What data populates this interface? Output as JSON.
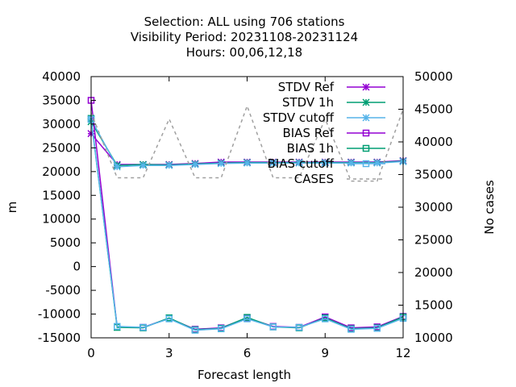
{
  "chart_data": {
    "type": "line",
    "title_lines": [
      "Selection: ALL using   706 stations",
      "Visibility   Period: 20231108-20231124",
      "Hours:  00,06,12,18"
    ],
    "xlabel": "Forecast length",
    "ylabel": "m",
    "y2label": "No cases",
    "xlim": [
      0,
      12
    ],
    "xticks": [
      0,
      3,
      6,
      9,
      12
    ],
    "ylim": [
      -15000,
      40000
    ],
    "yticks": [
      -15000,
      -10000,
      -5000,
      0,
      5000,
      10000,
      15000,
      20000,
      25000,
      30000,
      35000,
      40000
    ],
    "y2lim": [
      10000,
      50000
    ],
    "y2ticks": [
      10000,
      15000,
      20000,
      25000,
      30000,
      35000,
      40000,
      45000,
      50000
    ],
    "grid": false,
    "legend_position": "top-right",
    "x": [
      0,
      1,
      2,
      3,
      4,
      5,
      6,
      7,
      8,
      9,
      10,
      11,
      12
    ],
    "series": [
      {
        "name": "STDV Ref",
        "axis": "left",
        "color": "#9400d3",
        "marker": "x",
        "dash": "",
        "values": [
          28000,
          21500,
          21500,
          21500,
          21700,
          22000,
          22000,
          22000,
          22000,
          22000,
          22000,
          22000,
          22300
        ]
      },
      {
        "name": "STDV 1h",
        "axis": "left",
        "color": "#009e73",
        "marker": "x",
        "dash": "",
        "values": [
          30500,
          21300,
          21500,
          21400,
          21600,
          21800,
          21900,
          21900,
          21900,
          21900,
          21900,
          21900,
          22200
        ]
      },
      {
        "name": "STDV cutoff",
        "axis": "left",
        "color": "#56b4e9",
        "marker": "x",
        "dash": "",
        "values": [
          31000,
          21000,
          21300,
          21300,
          21500,
          21700,
          21800,
          21800,
          21800,
          21800,
          21800,
          21800,
          22100
        ]
      },
      {
        "name": "BIAS Ref",
        "axis": "left",
        "color": "#9400d3",
        "marker": "square",
        "dash": "",
        "values": [
          35000,
          -12700,
          -12800,
          -10900,
          -13200,
          -12900,
          -10800,
          -12600,
          -12800,
          -10600,
          -12900,
          -12700,
          -10500
        ]
      },
      {
        "name": "BIAS 1h",
        "axis": "left",
        "color": "#009e73",
        "marker": "square",
        "dash": "",
        "values": [
          31200,
          -12800,
          -12900,
          -10800,
          -13300,
          -13000,
          -10700,
          -12700,
          -12900,
          -10800,
          -13100,
          -12900,
          -10600
        ]
      },
      {
        "name": "BIAS cutoff",
        "axis": "left",
        "color": "#56b4e9",
        "marker": "square",
        "dash": "",
        "values": [
          31000,
          -12600,
          -12800,
          -11000,
          -13400,
          -13100,
          -11000,
          -12700,
          -12800,
          -11000,
          -13200,
          -13000,
          -10900
        ]
      },
      {
        "name": "CASES",
        "axis": "right",
        "color": "#a0a0a0",
        "marker": "none",
        "dash": "4,4",
        "values": [
          44500,
          34500,
          34500,
          43500,
          34500,
          34500,
          45500,
          34500,
          34500,
          43500,
          34000,
          34000,
          45000
        ]
      }
    ]
  }
}
